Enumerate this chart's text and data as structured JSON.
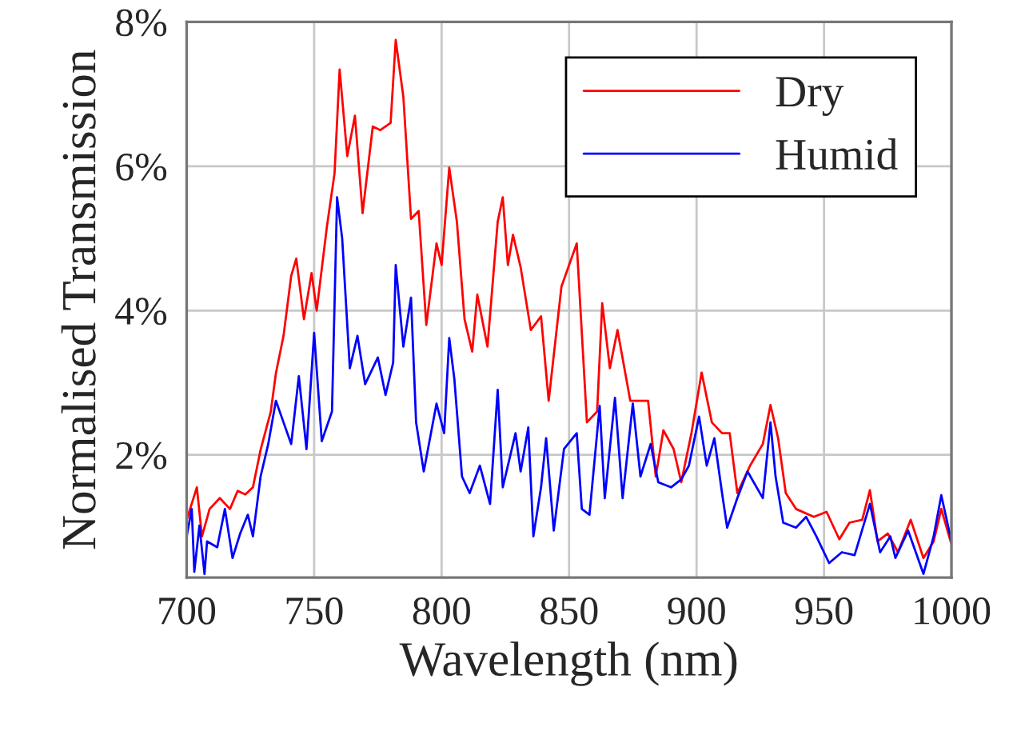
{
  "chart_data": {
    "type": "line",
    "xlabel": "Wavelength (nm)",
    "ylabel": "Normalised Transmission",
    "xlim": [
      700,
      1000
    ],
    "xticks": [
      700,
      750,
      800,
      850,
      900,
      950,
      1000
    ],
    "ylim": [
      0.3,
      8
    ],
    "yticks": [
      {
        "value": 2,
        "label": "2%"
      },
      {
        "value": 4,
        "label": "4%"
      },
      {
        "value": 6,
        "label": "6%"
      },
      {
        "value": 8,
        "label": "8%"
      }
    ],
    "grid": true,
    "legend": "top right",
    "marker": "none",
    "line_style": "solid",
    "series": [
      {
        "name": "Dry",
        "color": "#ff0000",
        "x": [
          700,
          704,
          706,
          709,
          713,
          717,
          720,
          723,
          726,
          729,
          733,
          735,
          738,
          741,
          743,
          746,
          749,
          751,
          755,
          758,
          760,
          763,
          766,
          769,
          773,
          776,
          780,
          782,
          785,
          788,
          791,
          794,
          798,
          800,
          803,
          806,
          809,
          812,
          814,
          818,
          822,
          824,
          826,
          828,
          831,
          835,
          839,
          842,
          847,
          853,
          857,
          861,
          863,
          866,
          869,
          874,
          881,
          884,
          887,
          891,
          894,
          898,
          902,
          906,
          910,
          913,
          916,
          921,
          926,
          929,
          932,
          935,
          939,
          946,
          951,
          956,
          960,
          965,
          968,
          971,
          975,
          979,
          984,
          989,
          993,
          996,
          1000
        ],
        "values": [
          1.1,
          1.55,
          0.87,
          1.25,
          1.4,
          1.25,
          1.5,
          1.45,
          1.55,
          2.07,
          2.6,
          3.13,
          3.65,
          4.48,
          4.72,
          3.88,
          4.52,
          4.0,
          5.16,
          5.9,
          7.34,
          6.14,
          6.7,
          5.35,
          6.55,
          6.5,
          6.6,
          7.75,
          6.96,
          5.27,
          5.38,
          3.8,
          4.93,
          4.63,
          5.98,
          5.23,
          3.88,
          3.43,
          4.22,
          3.5,
          5.23,
          5.57,
          4.63,
          5.05,
          4.6,
          3.73,
          3.92,
          2.75,
          4.33,
          4.93,
          2.45,
          2.6,
          4.1,
          3.2,
          3.73,
          2.75,
          2.75,
          1.7,
          2.34,
          2.08,
          1.62,
          2.3,
          3.14,
          2.45,
          2.3,
          2.3,
          1.47,
          1.85,
          2.15,
          2.69,
          2.23,
          1.47,
          1.25,
          1.14,
          1.21,
          0.83,
          1.06,
          1.1,
          1.51,
          0.8,
          0.91,
          0.65,
          1.1,
          0.57,
          0.8,
          1.25,
          0.76
        ]
      },
      {
        "name": "Humid",
        "color": "#0000ff",
        "x": [
          700,
          702,
          703,
          705,
          707,
          708,
          712,
          715,
          718,
          721,
          724,
          726,
          729,
          732,
          735,
          738,
          741,
          744,
          747,
          750,
          753,
          757,
          759,
          761,
          764,
          767,
          770,
          775,
          778,
          781,
          782,
          785,
          788,
          790,
          793,
          798,
          801,
          803,
          805,
          808,
          811,
          815,
          819,
          822,
          824,
          829,
          831,
          834,
          836,
          839,
          841,
          844,
          848,
          853,
          855,
          858,
          862,
          864,
          868,
          871,
          875,
          878,
          882,
          885,
          890,
          894,
          897,
          901,
          904,
          907,
          910,
          912,
          916,
          920,
          926,
          929,
          931,
          934,
          939,
          943,
          947,
          952,
          957,
          962,
          968,
          972,
          976,
          978,
          983,
          989,
          993,
          996,
          1000
        ],
        "values": [
          0.87,
          1.25,
          0.38,
          1.02,
          0.35,
          0.8,
          0.72,
          1.25,
          0.57,
          0.91,
          1.17,
          0.87,
          1.7,
          2.15,
          2.75,
          2.45,
          2.15,
          3.09,
          2.08,
          3.69,
          2.19,
          2.6,
          5.57,
          5.0,
          3.2,
          3.65,
          2.98,
          3.35,
          2.83,
          3.28,
          4.63,
          3.5,
          4.18,
          2.45,
          1.77,
          2.71,
          2.3,
          3.62,
          3.05,
          1.7,
          1.47,
          1.85,
          1.32,
          2.9,
          1.55,
          2.3,
          1.77,
          2.38,
          0.87,
          1.55,
          2.23,
          0.95,
          2.08,
          2.3,
          1.25,
          1.17,
          2.68,
          1.4,
          2.79,
          1.4,
          2.71,
          1.7,
          2.15,
          1.62,
          1.55,
          1.66,
          1.85,
          2.53,
          1.85,
          2.23,
          1.47,
          0.99,
          1.4,
          1.77,
          1.4,
          2.45,
          1.7,
          1.06,
          0.99,
          1.14,
          0.87,
          0.5,
          0.65,
          0.61,
          1.32,
          0.65,
          0.87,
          0.57,
          0.95,
          0.35,
          0.87,
          1.44,
          0.8
        ]
      }
    ]
  }
}
